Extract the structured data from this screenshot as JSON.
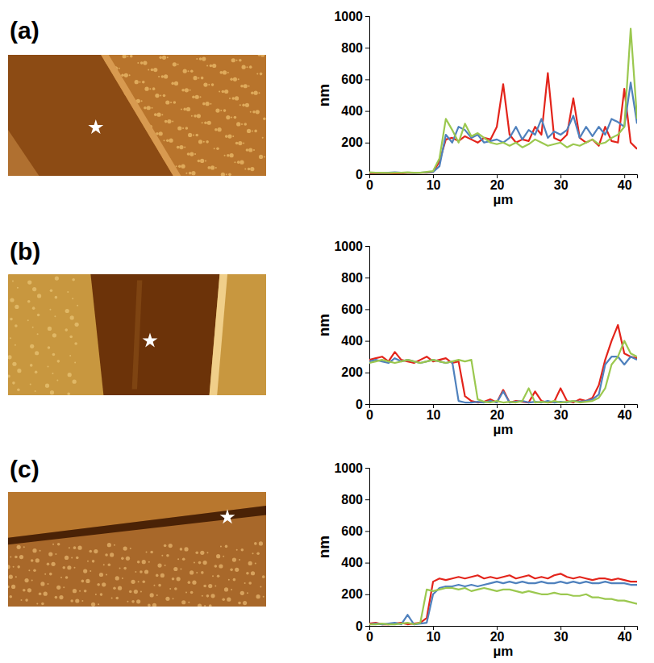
{
  "chart_data": [
    {
      "type": "line",
      "title": "(a)",
      "x_label": "µm",
      "y_label": "nm",
      "x": [
        0,
        1,
        2,
        3,
        4,
        5,
        6,
        7,
        8,
        9,
        10,
        11,
        12,
        13,
        14,
        15,
        16,
        17,
        18,
        19,
        20,
        21,
        22,
        23,
        24,
        25,
        26,
        27,
        28,
        29,
        30,
        31,
        32,
        33,
        34,
        35,
        36,
        37,
        38,
        39,
        40,
        41,
        42
      ],
      "xlim": [
        0,
        42
      ],
      "xticks": [
        0,
        10,
        20,
        30,
        40
      ],
      "ylim": [
        0,
        1000
      ],
      "yticks": [
        0,
        200,
        400,
        600,
        800,
        1000
      ],
      "grid": false,
      "series": [
        {
          "color": "#e3241b",
          "values": [
            5,
            5,
            5,
            5,
            5,
            5,
            8,
            8,
            10,
            10,
            15,
            80,
            220,
            230,
            210,
            240,
            220,
            200,
            230,
            220,
            300,
            570,
            250,
            200,
            220,
            210,
            300,
            250,
            640,
            230,
            210,
            250,
            480,
            230,
            200,
            220,
            180,
            300,
            210,
            200,
            540,
            200,
            160
          ]
        },
        {
          "color": "#4f81bd",
          "values": [
            10,
            10,
            8,
            10,
            12,
            10,
            10,
            8,
            10,
            12,
            15,
            50,
            250,
            200,
            300,
            280,
            230,
            250,
            200,
            210,
            220,
            200,
            230,
            300,
            220,
            280,
            250,
            350,
            230,
            270,
            250,
            280,
            370,
            230,
            300,
            240,
            300,
            250,
            350,
            330,
            300,
            580,
            320
          ]
        },
        {
          "color": "#9bc84f",
          "values": [
            12,
            10,
            10,
            8,
            10,
            10,
            12,
            10,
            10,
            15,
            20,
            100,
            350,
            280,
            200,
            320,
            240,
            260,
            230,
            200,
            190,
            200,
            180,
            200,
            170,
            190,
            220,
            200,
            180,
            190,
            200,
            170,
            190,
            180,
            200,
            220,
            190,
            200,
            230,
            250,
            300,
            920,
            350
          ]
        }
      ]
    },
    {
      "type": "line",
      "title": "(b)",
      "x_label": "µm",
      "y_label": "nm",
      "x": [
        0,
        1,
        2,
        3,
        4,
        5,
        6,
        7,
        8,
        9,
        10,
        11,
        12,
        13,
        14,
        15,
        16,
        17,
        18,
        19,
        20,
        21,
        22,
        23,
        24,
        25,
        26,
        27,
        28,
        29,
        30,
        31,
        32,
        33,
        34,
        35,
        36,
        37,
        38,
        39,
        40,
        41,
        42
      ],
      "xlim": [
        0,
        42
      ],
      "xticks": [
        0,
        10,
        20,
        30,
        40
      ],
      "ylim": [
        0,
        1000
      ],
      "yticks": [
        0,
        200,
        400,
        600,
        800,
        1000
      ],
      "grid": false,
      "series": [
        {
          "color": "#e3241b",
          "values": [
            280,
            290,
            300,
            270,
            330,
            280,
            270,
            260,
            280,
            300,
            270,
            280,
            290,
            260,
            270,
            50,
            20,
            10,
            15,
            30,
            10,
            90,
            10,
            20,
            15,
            10,
            80,
            20,
            10,
            15,
            100,
            20,
            10,
            30,
            20,
            40,
            120,
            280,
            400,
            500,
            320,
            300,
            290
          ]
        },
        {
          "color": "#4f81bd",
          "values": [
            270,
            280,
            270,
            260,
            290,
            270,
            280,
            270,
            260,
            270,
            280,
            270,
            260,
            270,
            20,
            10,
            10,
            15,
            10,
            20,
            10,
            80,
            10,
            15,
            20,
            10,
            15,
            10,
            20,
            10,
            15,
            10,
            20,
            15,
            20,
            30,
            60,
            250,
            300,
            300,
            250,
            300,
            280
          ]
        },
        {
          "color": "#9bc84f",
          "values": [
            260,
            270,
            280,
            270,
            260,
            270,
            280,
            270,
            260,
            270,
            280,
            270,
            260,
            270,
            280,
            270,
            280,
            30,
            15,
            10,
            20,
            10,
            15,
            10,
            20,
            100,
            10,
            15,
            10,
            20,
            10,
            15,
            20,
            10,
            15,
            20,
            40,
            100,
            250,
            300,
            400,
            320,
            300
          ]
        }
      ]
    },
    {
      "type": "line",
      "title": "(c)",
      "x_label": "µm",
      "y_label": "nm",
      "x": [
        0,
        1,
        2,
        3,
        4,
        5,
        6,
        7,
        8,
        9,
        10,
        11,
        12,
        13,
        14,
        15,
        16,
        17,
        18,
        19,
        20,
        21,
        22,
        23,
        24,
        25,
        26,
        27,
        28,
        29,
        30,
        31,
        32,
        33,
        34,
        35,
        36,
        37,
        38,
        39,
        40,
        41,
        42
      ],
      "xlim": [
        0,
        42
      ],
      "xticks": [
        0,
        10,
        20,
        30,
        40
      ],
      "ylim": [
        0,
        1000
      ],
      "yticks": [
        0,
        200,
        400,
        600,
        800,
        1000
      ],
      "grid": false,
      "series": [
        {
          "color": "#e3241b",
          "values": [
            15,
            20,
            10,
            10,
            15,
            20,
            10,
            15,
            20,
            50,
            280,
            300,
            290,
            300,
            310,
            300,
            310,
            320,
            300,
            310,
            300,
            310,
            320,
            300,
            310,
            320,
            300,
            310,
            300,
            320,
            330,
            310,
            300,
            310,
            300,
            290,
            300,
            300,
            290,
            300,
            290,
            280,
            280
          ]
        },
        {
          "color": "#4f81bd",
          "values": [
            10,
            15,
            10,
            15,
            20,
            10,
            70,
            10,
            15,
            20,
            200,
            240,
            250,
            250,
            260,
            250,
            260,
            250,
            260,
            270,
            280,
            270,
            280,
            270,
            280,
            270,
            270,
            280,
            270,
            270,
            280,
            270,
            280,
            270,
            280,
            270,
            270,
            280,
            270,
            270,
            270,
            260,
            260
          ]
        },
        {
          "color": "#9bc84f",
          "values": [
            10,
            10,
            15,
            10,
            10,
            15,
            20,
            10,
            20,
            230,
            220,
            230,
            240,
            240,
            230,
            240,
            220,
            230,
            240,
            230,
            220,
            230,
            230,
            220,
            210,
            220,
            210,
            200,
            200,
            210,
            200,
            200,
            190,
            190,
            200,
            180,
            180,
            170,
            170,
            160,
            160,
            150,
            140
          ]
        }
      ]
    }
  ]
}
